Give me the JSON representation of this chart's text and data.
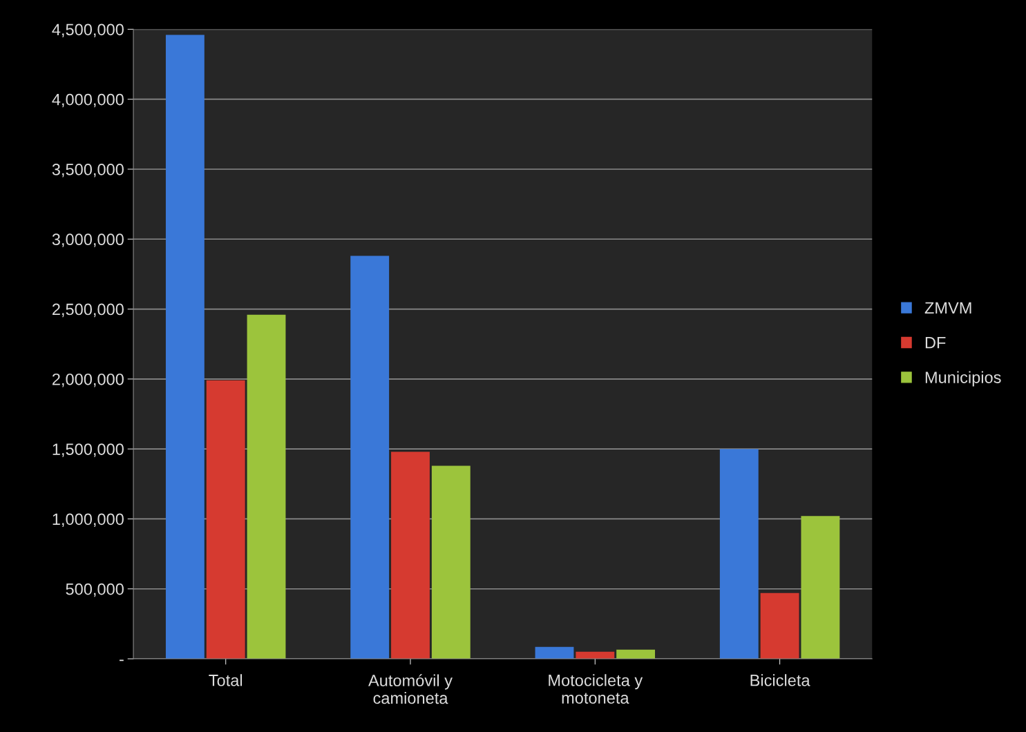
{
  "chart_data": {
    "type": "bar",
    "categories": [
      "Total",
      "Automóvil y\ncamioneta",
      "Motocicleta y\nmotoneta",
      "Bicicleta"
    ],
    "series": [
      {
        "name": "ZMVM",
        "color": "#3a78d8",
        "values": [
          4460000,
          2880000,
          85000,
          1500000
        ]
      },
      {
        "name": "DF",
        "color": "#d63a30",
        "values": [
          1990000,
          1480000,
          50000,
          470000
        ]
      },
      {
        "name": "Municipios",
        "color": "#9cc43c",
        "values": [
          2460000,
          1380000,
          65000,
          1020000
        ]
      }
    ],
    "ylim": [
      0,
      4500000
    ],
    "yticks": [
      {
        "value": 0,
        "label": "-"
      },
      {
        "value": 500000,
        "label": "500,000"
      },
      {
        "value": 1000000,
        "label": "1,000,000"
      },
      {
        "value": 1500000,
        "label": "1,500,000"
      },
      {
        "value": 2000000,
        "label": "2,000,000"
      },
      {
        "value": 2500000,
        "label": "2,500,000"
      },
      {
        "value": 3000000,
        "label": "3,000,000"
      },
      {
        "value": 3500000,
        "label": "3,500,000"
      },
      {
        "value": 4000000,
        "label": "4,000,000"
      },
      {
        "value": 4500000,
        "label": "4,500,000"
      }
    ],
    "grid": "y",
    "legend": "right"
  }
}
